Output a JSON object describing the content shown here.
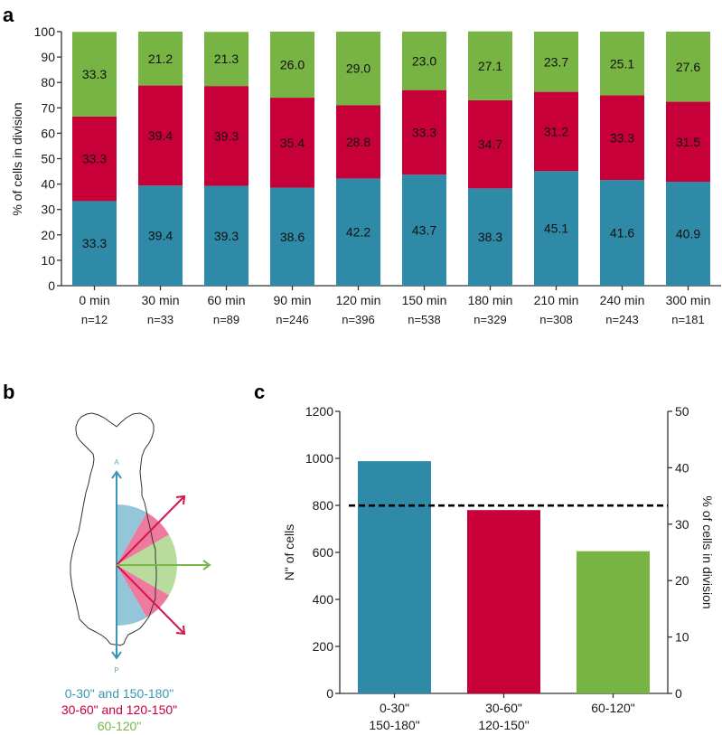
{
  "panels": {
    "a": "a",
    "b": "b",
    "c": "c"
  },
  "colors": {
    "blue": "#2e8aa6",
    "red": "#c8003a",
    "green": "#77b443",
    "legend_blue": "#3a97b4",
    "legend_red": "#c8003a",
    "legend_green": "#7ab648"
  },
  "chart_data": [
    {
      "id": "a",
      "type": "bar",
      "stacked": true,
      "ylabel": "% of cells in division",
      "xlabel": "",
      "ylim": [
        0,
        100
      ],
      "yticks": [
        0,
        10,
        20,
        30,
        40,
        50,
        60,
        70,
        80,
        90,
        100
      ],
      "categories": [
        "0 min",
        "30 min",
        "60 min",
        "90 min",
        "120 min",
        "150 min",
        "180 min",
        "210 min",
        "240 min",
        "300 min"
      ],
      "n_labels": [
        "n=12",
        "n=33",
        "n=89",
        "n=246",
        "n=396",
        "n=538",
        "n=329",
        "n=308",
        "n=243",
        "n=181"
      ],
      "series": [
        {
          "name": "0-30\" and 150-180\"",
          "color": "#2e8aa6",
          "values": [
            33.3,
            39.4,
            39.3,
            38.6,
            42.2,
            43.7,
            38.3,
            45.1,
            41.6,
            40.9
          ]
        },
        {
          "name": "30-60\" and 120-150\"",
          "color": "#c8003a",
          "values": [
            33.3,
            39.4,
            39.3,
            35.4,
            28.8,
            33.3,
            34.7,
            31.2,
            33.3,
            31.5
          ]
        },
        {
          "name": "60-120\"",
          "color": "#77b443",
          "values": [
            33.3,
            21.2,
            21.3,
            26.0,
            29.0,
            23.0,
            27.1,
            23.7,
            25.1,
            27.6
          ]
        }
      ],
      "grid": false,
      "legend": "none"
    },
    {
      "id": "c",
      "type": "bar",
      "ylabel": "N\" of cells",
      "ylabel_right": "% of cells in division",
      "ylim": [
        0,
        1200
      ],
      "ylim_right": [
        0,
        50
      ],
      "yticks": [
        0,
        200,
        400,
        600,
        800,
        1000,
        1200
      ],
      "yticks_right": [
        0,
        10,
        20,
        30,
        40,
        50
      ],
      "categories": [
        [
          "0-30\"",
          "150-180\""
        ],
        [
          "30-60\"",
          "120-150\""
        ],
        [
          "60-120\""
        ]
      ],
      "values": [
        988,
        780,
        605
      ],
      "colors": [
        "#2e8aa6",
        "#c8003a",
        "#77b443"
      ],
      "reference_line": {
        "axis": "right",
        "value": 33.3,
        "style": "dashed"
      },
      "grid": false,
      "legend": "none"
    }
  ],
  "diagram": {
    "anterior_label": "A",
    "posterior_label": "P",
    "legend": [
      {
        "text": "0-30\" and 150-180\"",
        "color": "#3a97b4"
      },
      {
        "text": "30-60\" and 120-150\"",
        "color": "#c8003a"
      },
      {
        "text": "60-120\"",
        "color": "#7ab648"
      }
    ]
  }
}
